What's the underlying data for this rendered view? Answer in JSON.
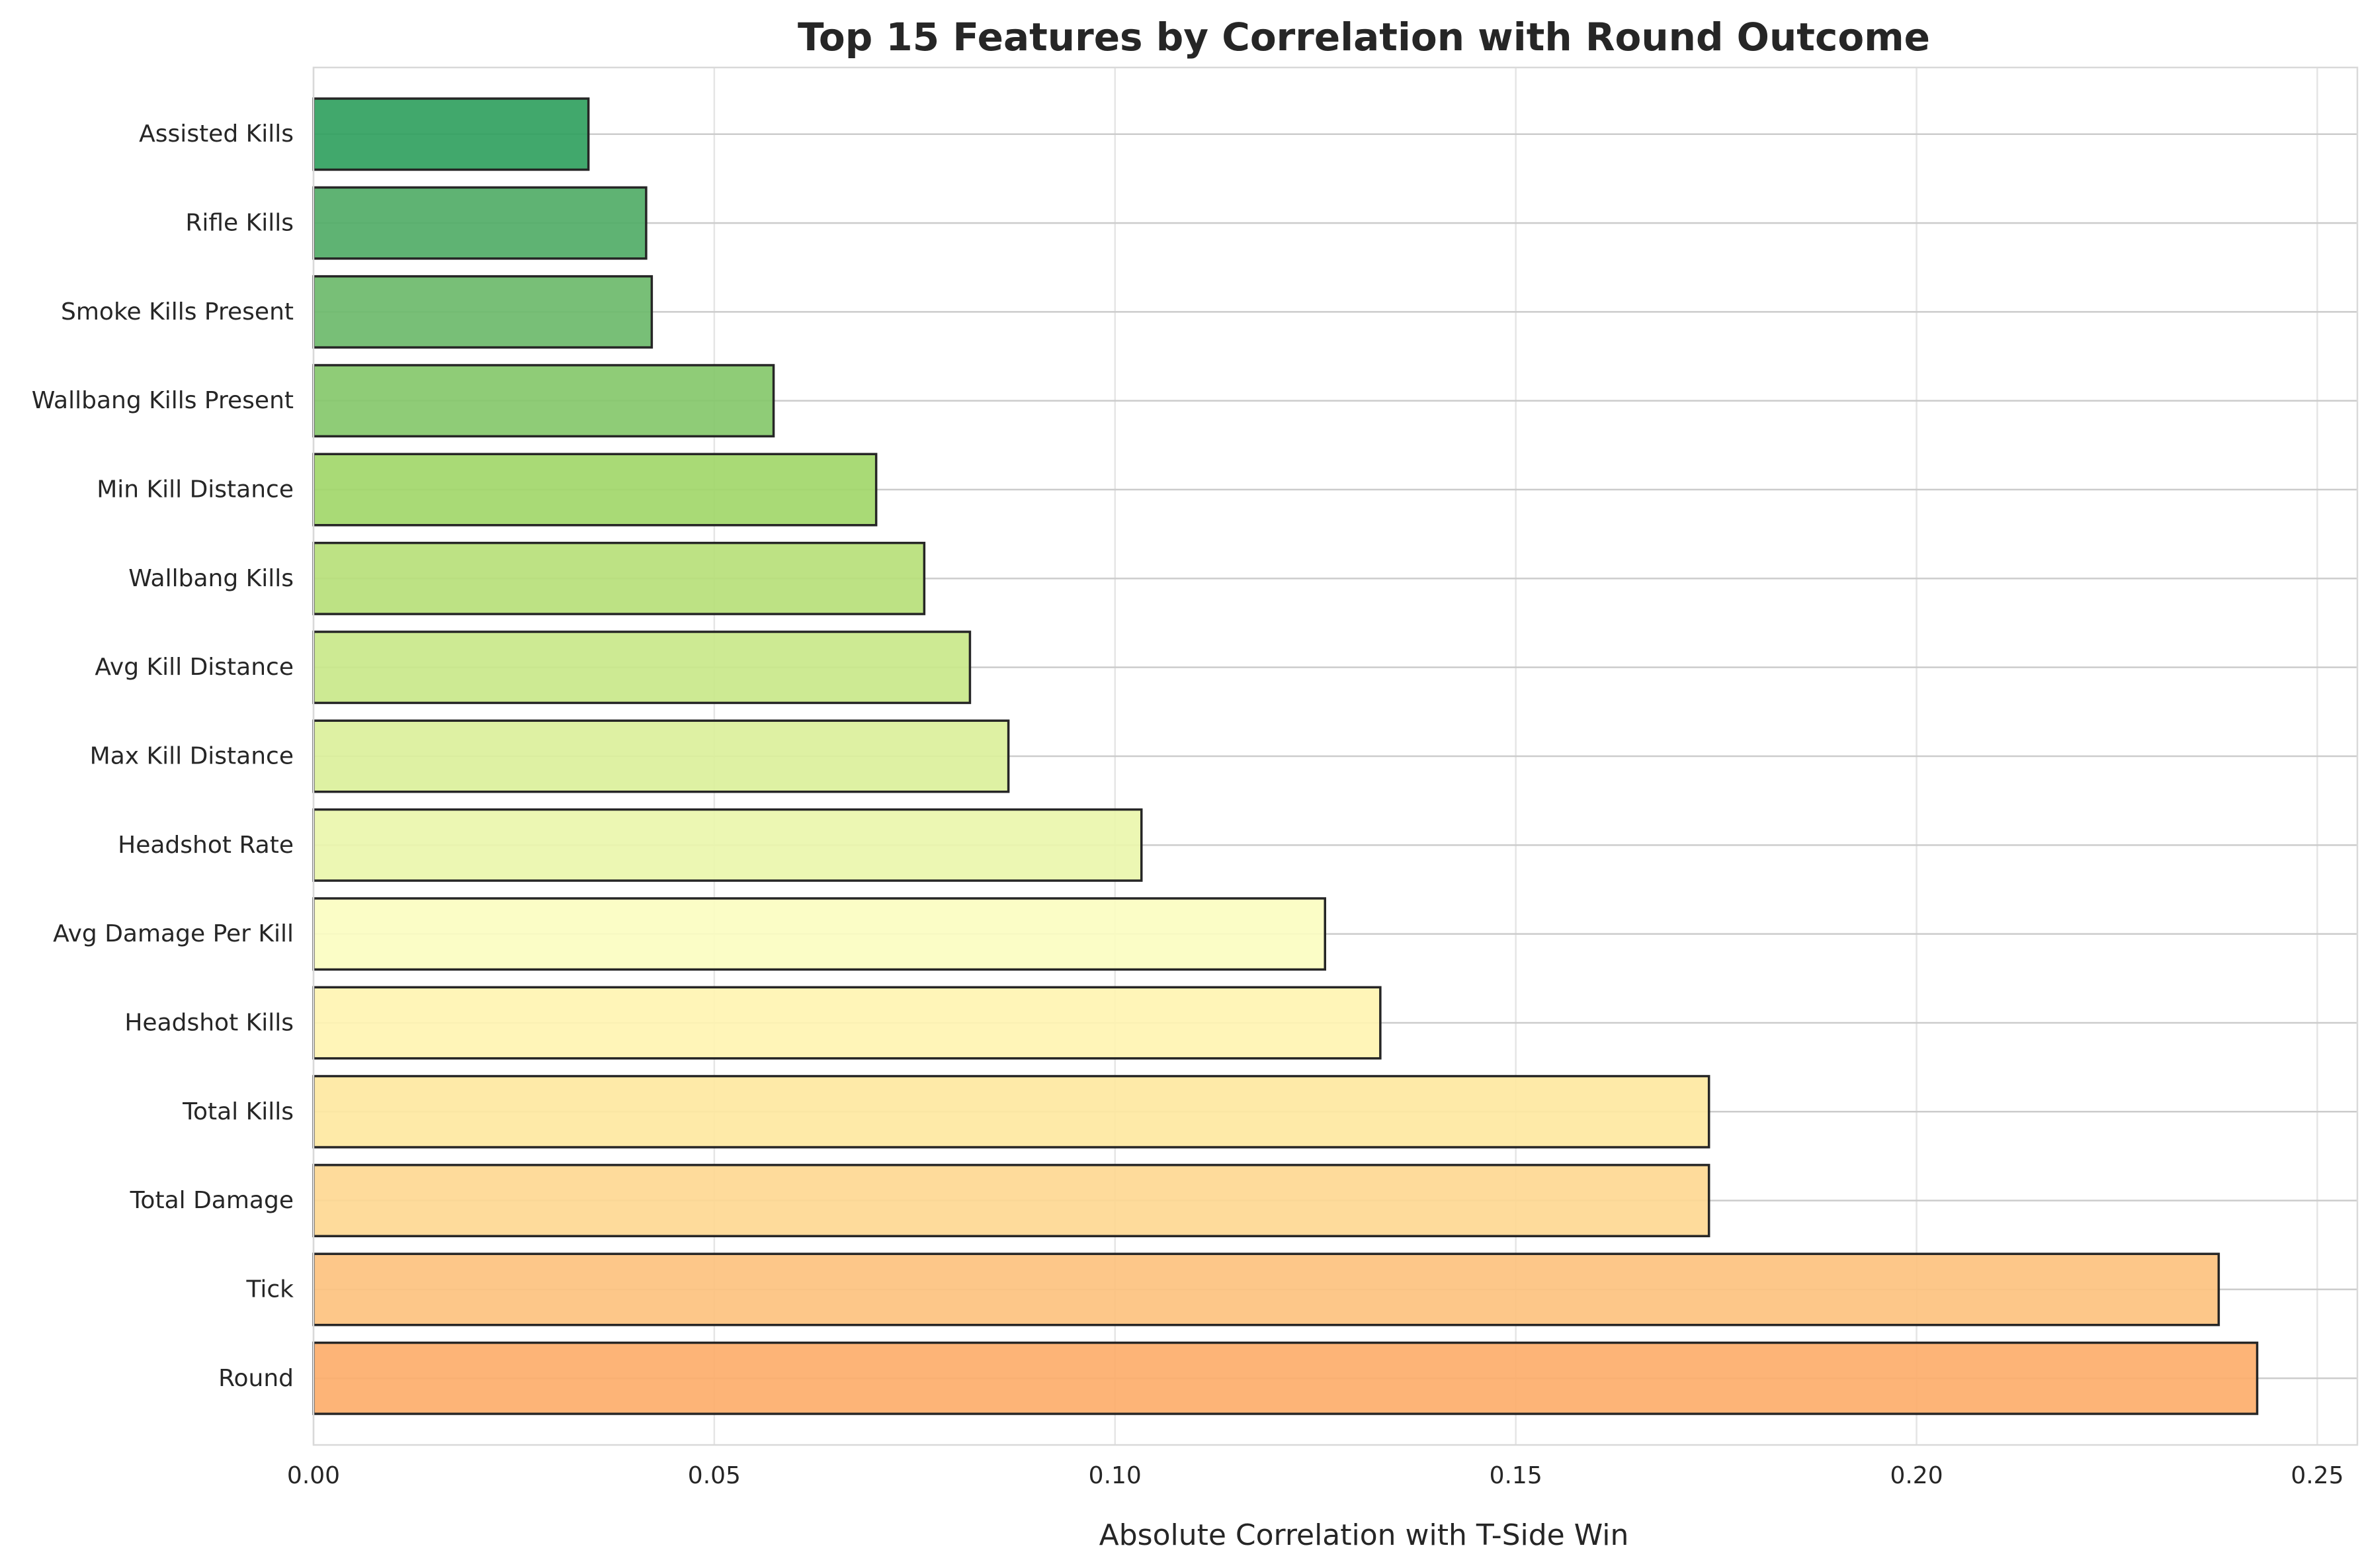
{
  "chart_data": {
    "type": "bar",
    "orientation": "horizontal",
    "title": "Top 15 Features by Correlation with Round Outcome",
    "xlabel": "Absolute Correlation with T-Side Win",
    "ylabel": "",
    "xlim": [
      0,
      0.255
    ],
    "xticks": [
      "0.00",
      "0.05",
      "0.10",
      "0.15",
      "0.20",
      "0.25"
    ],
    "xtick_values": [
      0,
      0.05,
      0.1,
      0.15,
      0.2,
      0.25
    ],
    "grid": true,
    "categories": [
      "Round",
      "Tick",
      "Total Damage",
      "Total Kills",
      "Headshot Kills",
      "Avg Damage Per Kill",
      "Headshot Rate",
      "Max Kill Distance",
      "Avg Kill Distance",
      "Wallbang Kills",
      "Min Kill Distance",
      "Wallbang Kills Present",
      "Smoke Kills Present",
      "Rifle Kills",
      "Assisted Kills"
    ],
    "values": [
      0.2425,
      0.2377,
      0.1741,
      0.1741,
      0.1331,
      0.1262,
      0.1033,
      0.0867,
      0.0819,
      0.0762,
      0.0702,
      0.0574,
      0.0422,
      0.0415,
      0.0343
    ],
    "colors": [
      "#fdae6b",
      "#fdc27f",
      "#fed892",
      "#fee8a1",
      "#fff4b2",
      "#fbfdc1",
      "#eaf6ad",
      "#dbf09b",
      "#c9e88a",
      "#b7e07a",
      "#a2d76a",
      "#86c86b",
      "#6cba6b",
      "#51ac67",
      "#31a15f"
    ]
  }
}
